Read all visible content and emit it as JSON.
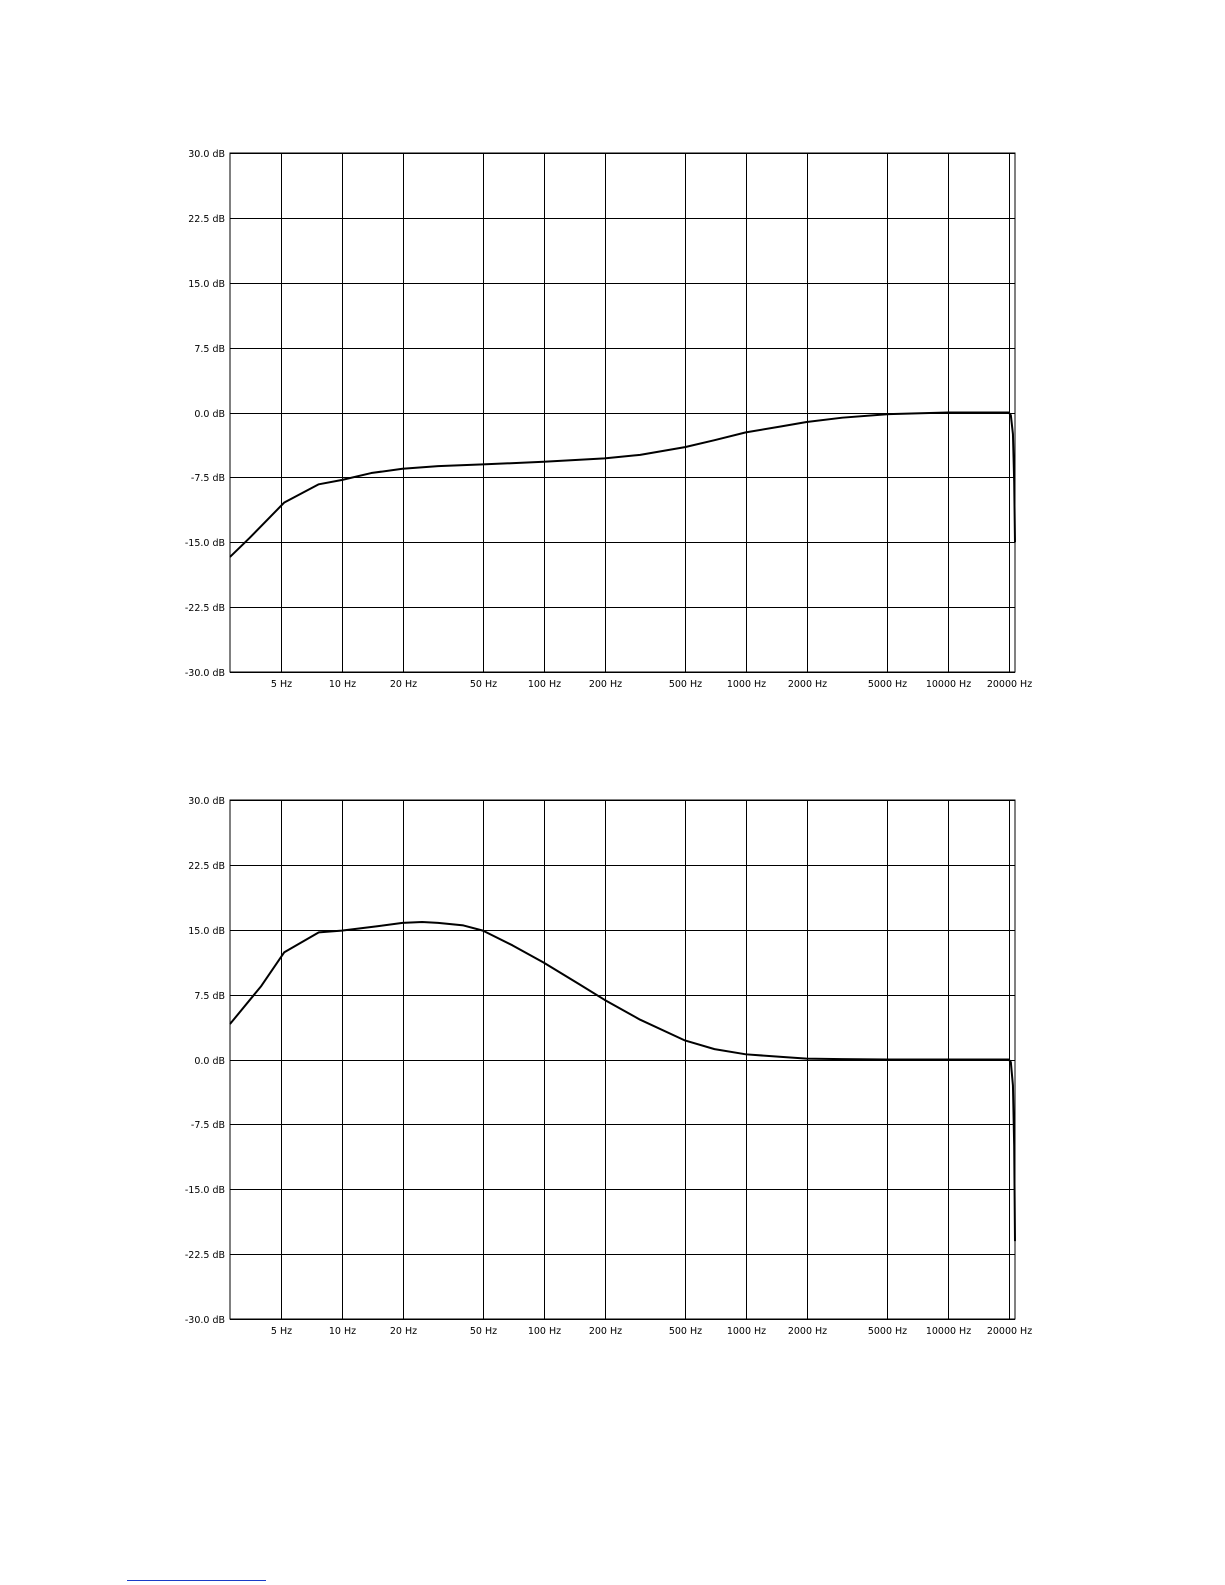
{
  "chart_data": [
    {
      "type": "line",
      "x_scale": "log",
      "xlim": [
        2.8,
        21500
      ],
      "ylim": [
        -30,
        30
      ],
      "grid": true,
      "y_ticks": [
        30,
        22.5,
        15,
        7.5,
        0,
        -7.5,
        -15,
        -22.5,
        -30
      ],
      "y_tick_labels": [
        "30.0 dB",
        "22.5 dB",
        "15.0 dB",
        "7.5 dB",
        "0.0 dB",
        "-7.5 dB",
        "-15.0 dB",
        "-22.5 dB",
        "-30.0 dB"
      ],
      "x_ticks": [
        5,
        10,
        20,
        50,
        100,
        200,
        500,
        1000,
        2000,
        5000,
        10000,
        20000
      ],
      "x_tick_labels": [
        "5 Hz",
        "10 Hz",
        "20 Hz",
        "50 Hz",
        "100 Hz",
        "200 Hz",
        "500 Hz",
        "1000 Hz",
        "2000 Hz",
        "5000 Hz",
        "10000 Hz",
        "20000 Hz"
      ],
      "series": [
        {
          "x": [
            2.8,
            3.5,
            5.2,
            7.7,
            10,
            14,
            20,
            30,
            50,
            100,
            200,
            300,
            500,
            700,
            1000,
            1500,
            2000,
            3000,
            5000,
            10000,
            15000,
            19000,
            20000,
            20500,
            21000,
            21300,
            21500
          ],
          "y": [
            -16.7,
            -14.5,
            -10.4,
            -8.3,
            -7.8,
            -7.0,
            -6.5,
            -6.2,
            -6.0,
            -5.7,
            -5.3,
            -4.9,
            -4.0,
            -3.2,
            -2.3,
            -1.6,
            -1.1,
            -0.6,
            -0.2,
            0.0,
            0.0,
            0.0,
            0.0,
            -0.3,
            -2.5,
            -8.0,
            -15.0
          ]
        }
      ]
    },
    {
      "type": "line",
      "x_scale": "log",
      "xlim": [
        2.8,
        21500
      ],
      "ylim": [
        -30,
        30
      ],
      "grid": true,
      "y_ticks": [
        30,
        22.5,
        15,
        7.5,
        0,
        -7.5,
        -15,
        -22.5,
        -30
      ],
      "y_tick_labels": [
        "30.0 dB",
        "22.5 dB",
        "15.0 dB",
        "7.5 dB",
        "0.0 dB",
        "-7.5 dB",
        "-15.0 dB",
        "-22.5 dB",
        "-30.0 dB"
      ],
      "x_ticks": [
        5,
        10,
        20,
        50,
        100,
        200,
        500,
        1000,
        2000,
        5000,
        10000,
        20000
      ],
      "x_tick_labels": [
        "5 Hz",
        "10 Hz",
        "20 Hz",
        "50 Hz",
        "100 Hz",
        "200 Hz",
        "500 Hz",
        "1000 Hz",
        "2000 Hz",
        "5000 Hz",
        "10000 Hz",
        "20000 Hz"
      ],
      "series": [
        {
          "x": [
            2.8,
            4,
            5.2,
            7.7,
            10,
            15,
            20,
            25,
            30,
            40,
            50,
            70,
            100,
            150,
            200,
            300,
            500,
            700,
            1000,
            1500,
            2000,
            3000,
            5000,
            10000,
            15000,
            19000,
            20000,
            20500,
            21000,
            21300,
            21500
          ],
          "y": [
            4.1,
            8.5,
            12.4,
            14.7,
            14.9,
            15.4,
            15.8,
            15.9,
            15.8,
            15.5,
            14.9,
            13.2,
            11.2,
            8.7,
            6.9,
            4.6,
            2.2,
            1.2,
            0.6,
            0.3,
            0.1,
            0.05,
            0.0,
            0.0,
            0.0,
            0.0,
            0.0,
            -0.3,
            -3.0,
            -10.0,
            -21.0
          ]
        }
      ]
    }
  ]
}
